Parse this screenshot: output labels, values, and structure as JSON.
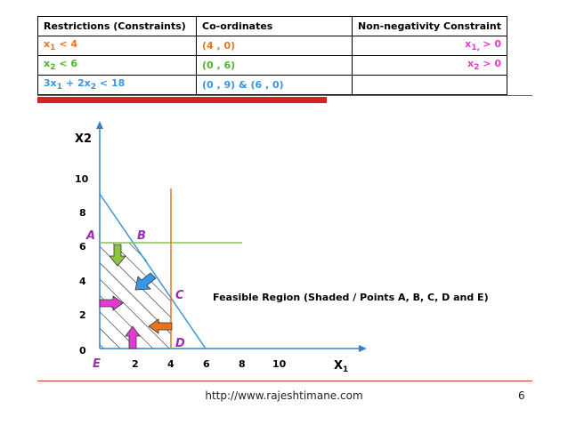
{
  "table": {
    "headers": [
      "Restrictions (Constraints)",
      "Co-ordinates",
      "Non-negativity Constraint"
    ],
    "rows": [
      {
        "restriction_pre": "x",
        "restriction_sub": "1",
        "restriction_post": " < 4",
        "coords": "(4 , 0)",
        "nonneg_pre": "x",
        "nonneg_sub": "1, ",
        "nonneg_post": "> 0",
        "color": "orange"
      },
      {
        "restriction_pre": "x",
        "restriction_sub": "2",
        "restriction_post": " < 6",
        "coords": "(0 , 6)",
        "nonneg_pre": "x",
        "nonneg_sub": "2",
        "nonneg_post": " > 0",
        "color": "green"
      },
      {
        "restriction_pre": "3x",
        "restriction_sub": "1",
        "restriction_mid": " + 2x",
        "restriction_sub2": "2",
        "restriction_post": " < 18",
        "coords": "(0 , 9) & (6 , 0)",
        "color": "blue"
      }
    ]
  },
  "graph": {
    "y_axis_label": "X2",
    "x_axis_label": "X",
    "x_axis_label_sub": "1",
    "y_ticks": [
      "0",
      "2",
      "4",
      "6",
      "8",
      "10"
    ],
    "x_ticks": [
      "2",
      "4",
      "6",
      "8",
      "10"
    ],
    "points": {
      "A": "A",
      "B": "B",
      "C": "C",
      "D": "D",
      "E": "E"
    },
    "feasible_label": "Feasible Region (Shaded / Points A, B, C, D and E)",
    "colors": {
      "x1_line": "#e8731a",
      "x2_line": "#8cc63f",
      "constraint_line": "#3a96e0",
      "points": "#9b2fae"
    }
  },
  "footer": {
    "url": "http://www.rajeshtimane.com",
    "page": "6"
  }
}
